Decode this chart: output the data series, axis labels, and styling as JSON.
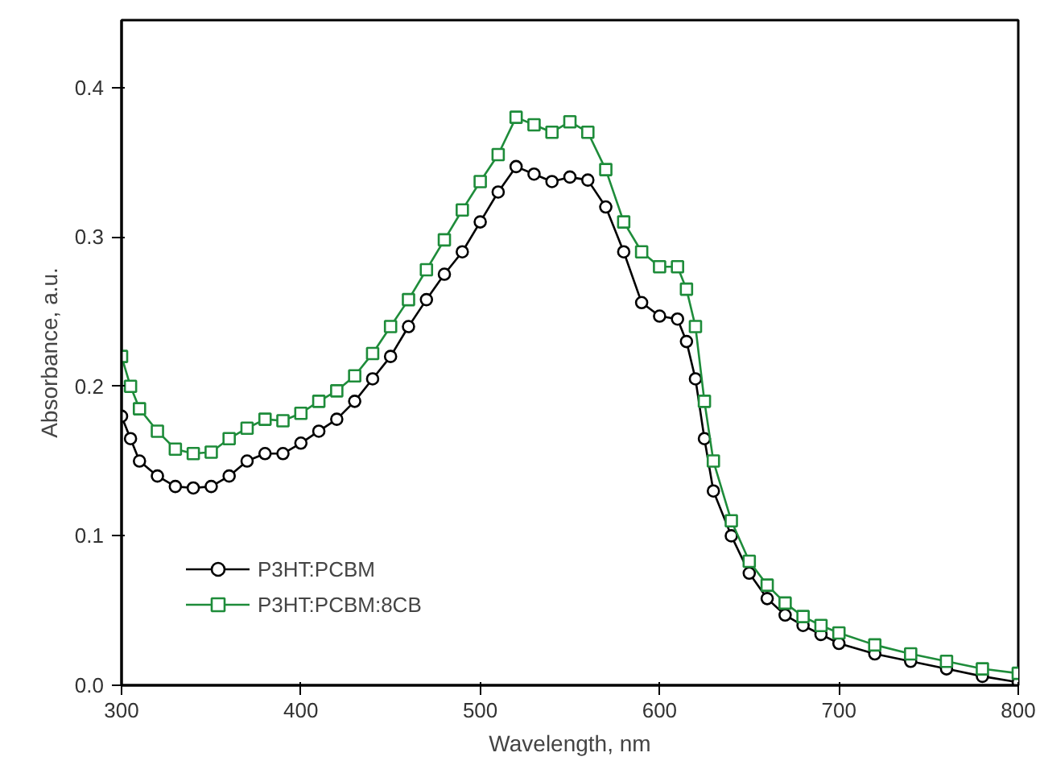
{
  "chart_data": {
    "type": "line",
    "xlabel": "Wavelength, nm",
    "ylabel": "Absorbance, a.u.",
    "xlim": [
      300,
      800
    ],
    "ylim": [
      0,
      0.445
    ],
    "xticks": [
      300,
      400,
      500,
      600,
      700,
      800
    ],
    "yticks": [
      {
        "value": 0,
        "label": "0.0"
      },
      {
        "value": 0.1,
        "label": "0.1"
      },
      {
        "value": 0.2,
        "label": "0.2"
      },
      {
        "value": 0.3,
        "label": "0.3"
      },
      {
        "value": 0.4,
        "label": "0.4"
      }
    ],
    "grid": false,
    "legend": "bottom left",
    "line_style": "solid",
    "series": [
      {
        "name": "P3HT:PCBM",
        "color": "#000000",
        "marker": "circle",
        "x": [
          300,
          305,
          310,
          320,
          330,
          340,
          350,
          360,
          370,
          380,
          390,
          400,
          410,
          420,
          430,
          440,
          450,
          460,
          470,
          480,
          490,
          500,
          510,
          520,
          530,
          540,
          550,
          560,
          570,
          580,
          590,
          600,
          610,
          615,
          620,
          625,
          630,
          640,
          650,
          660,
          670,
          680,
          690,
          700,
          720,
          740,
          760,
          780,
          800
        ],
        "values": [
          0.18,
          0.165,
          0.15,
          0.14,
          0.133,
          0.132,
          0.133,
          0.14,
          0.15,
          0.155,
          0.155,
          0.162,
          0.17,
          0.178,
          0.19,
          0.205,
          0.22,
          0.24,
          0.258,
          0.275,
          0.29,
          0.31,
          0.33,
          0.347,
          0.342,
          0.337,
          0.34,
          0.338,
          0.32,
          0.29,
          0.256,
          0.247,
          0.245,
          0.23,
          0.205,
          0.165,
          0.13,
          0.1,
          0.075,
          0.058,
          0.047,
          0.04,
          0.034,
          0.028,
          0.021,
          0.016,
          0.011,
          0.006,
          0.002
        ]
      },
      {
        "name": "P3HT:PCBM:8CB",
        "color": "#1e8c3a",
        "marker": "square",
        "x": [
          300,
          305,
          310,
          320,
          330,
          340,
          350,
          360,
          370,
          380,
          390,
          400,
          410,
          420,
          430,
          440,
          450,
          460,
          470,
          480,
          490,
          500,
          510,
          520,
          530,
          540,
          550,
          560,
          570,
          580,
          590,
          600,
          610,
          615,
          620,
          625,
          630,
          640,
          650,
          660,
          670,
          680,
          690,
          700,
          720,
          740,
          760,
          780,
          800
        ],
        "values": [
          0.22,
          0.2,
          0.185,
          0.17,
          0.158,
          0.155,
          0.156,
          0.165,
          0.172,
          0.178,
          0.177,
          0.182,
          0.19,
          0.197,
          0.207,
          0.222,
          0.24,
          0.258,
          0.278,
          0.298,
          0.318,
          0.337,
          0.355,
          0.38,
          0.375,
          0.37,
          0.377,
          0.37,
          0.345,
          0.31,
          0.29,
          0.28,
          0.28,
          0.265,
          0.24,
          0.19,
          0.15,
          0.11,
          0.083,
          0.067,
          0.055,
          0.046,
          0.04,
          0.035,
          0.027,
          0.021,
          0.016,
          0.011,
          0.008
        ]
      }
    ]
  }
}
